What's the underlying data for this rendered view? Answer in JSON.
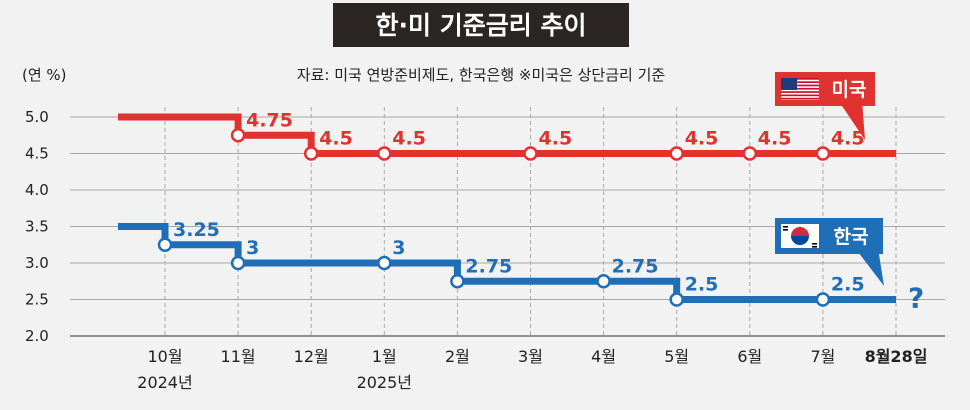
{
  "title": "한·미 기준금리 추이",
  "unit_label": "(연 %)",
  "source_note": "자료: 미국 연방준비제도, 한국은행  ※미국은 상단금리 기준",
  "colors": {
    "us": "#e0322f",
    "kr": "#1f6fb8",
    "title_bg": "#2b2624"
  },
  "chart_data": {
    "type": "line",
    "step": true,
    "ylim": [
      2.0,
      5.0
    ],
    "yticks": [
      "2.0",
      "2.5",
      "3.0",
      "3.5",
      "4.0",
      "4.5",
      "5.0"
    ],
    "categories": [
      "10월",
      "11월",
      "12월",
      "1월",
      "2월",
      "3월",
      "4월",
      "5월",
      "6월",
      "7월",
      "8월28일"
    ],
    "year_labels": [
      {
        "category": "10월",
        "text": "2024년"
      },
      {
        "category": "1월",
        "text": "2025년"
      }
    ],
    "highlight_category": "8월28일",
    "series": [
      {
        "name": "미국",
        "flag": "us-flag",
        "start_value": 5.0,
        "points": [
          {
            "category": "11월",
            "value": 4.75,
            "label": "4.75"
          },
          {
            "category": "12월",
            "value": 4.5,
            "label": "4.5"
          },
          {
            "category": "1월",
            "value": 4.5,
            "label": "4.5"
          },
          {
            "category": "3월",
            "value": 4.5,
            "label": "4.5"
          },
          {
            "category": "5월",
            "value": 4.5,
            "label": "4.5"
          },
          {
            "category": "6월",
            "value": 4.5,
            "label": "4.5"
          },
          {
            "category": "7월",
            "value": 4.5,
            "label": "4.5"
          }
        ],
        "end_category": "8월28일",
        "end_value": 4.5
      },
      {
        "name": "한국",
        "flag": "kr-flag",
        "start_value": 3.5,
        "points": [
          {
            "category": "10월",
            "value": 3.25,
            "label": "3.25"
          },
          {
            "category": "11월",
            "value": 3.0,
            "label": "3"
          },
          {
            "category": "1월",
            "value": 3.0,
            "label": "3"
          },
          {
            "category": "2월",
            "value": 2.75,
            "label": "2.75"
          },
          {
            "category": "4월",
            "value": 2.75,
            "label": "2.75"
          },
          {
            "category": "5월",
            "value": 2.5,
            "label": "2.5"
          },
          {
            "category": "7월",
            "value": 2.5,
            "label": "2.5"
          }
        ],
        "end_category": "8월28일",
        "end_value": 2.5,
        "end_label": "?"
      }
    ]
  }
}
